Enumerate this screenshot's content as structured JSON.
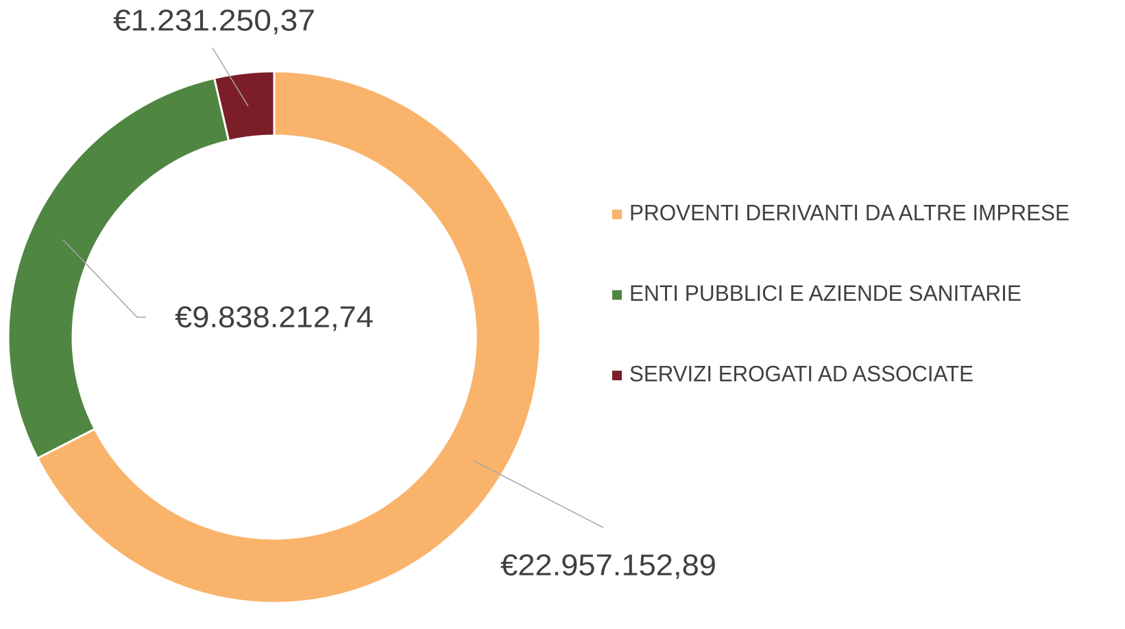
{
  "chart_data": {
    "type": "donut",
    "categories": [
      "PROVENTI DERIVANTI DA ALTRE IMPRESE",
      "ENTI PUBBLICI E AZIENDE SANITARIE",
      "SERVIZI EROGATI AD ASSOCIATE"
    ],
    "values": [
      22957152.89,
      9838212.74,
      1231250.37
    ],
    "value_labels": [
      "€22.957.152,89",
      "€9.838.212,74",
      "€1.231.250,37"
    ],
    "colors": [
      "#F9B36B",
      "#4F8641",
      "#7B1E28"
    ],
    "legend": "right"
  }
}
